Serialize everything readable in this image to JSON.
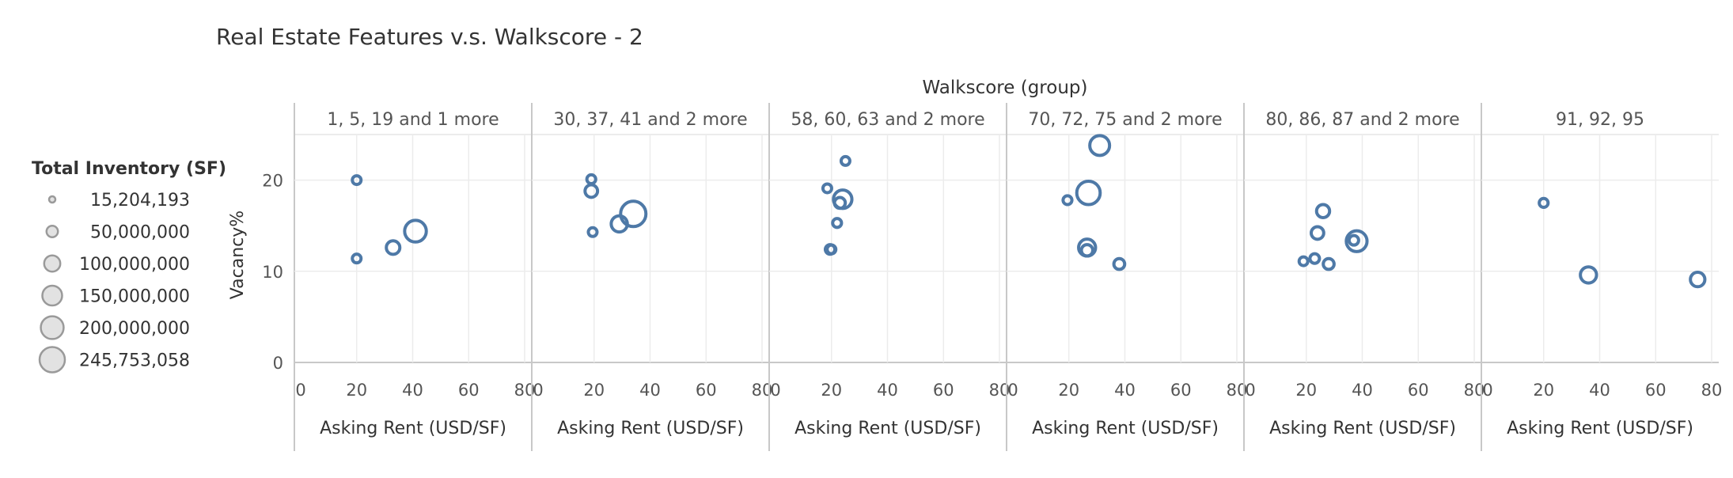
{
  "chart_data": {
    "type": "scatter",
    "title": "Real Estate Features v.s. Walkscore - 2",
    "column_header": "Walkscore (group)",
    "xlabel": "Asking Rent (USD/SF)",
    "ylabel": "Vacancy%",
    "xlim": [
      0,
      80
    ],
    "ylim": [
      0,
      25
    ],
    "x_ticks": [
      "0",
      "20",
      "40",
      "60",
      "80"
    ],
    "y_ticks": [
      "0",
      "10",
      "20"
    ],
    "grid": true,
    "legend": {
      "title": "Total Inventory (SF)",
      "position": "left",
      "items": [
        {
          "label": "15,204,193",
          "value": 15204193
        },
        {
          "label": "50,000,000",
          "value": 50000000
        },
        {
          "label": "100,000,000",
          "value": 100000000
        },
        {
          "label": "150,000,000",
          "value": 150000000
        },
        {
          "label": "200,000,000",
          "value": 200000000
        },
        {
          "label": "245,753,058",
          "value": 245753058
        }
      ]
    },
    "color": "#4e79a7",
    "panels": [
      {
        "label": "1, 5, 19 and 1 more",
        "points": [
          {
            "x": 20,
            "y": 20,
            "size": 28000000
          },
          {
            "x": 20,
            "y": 11.4,
            "size": 22000000
          },
          {
            "x": 33,
            "y": 12.6,
            "size": 70000000
          },
          {
            "x": 41,
            "y": 14.4,
            "size": 180000000
          }
        ]
      },
      {
        "label": "30, 37, 41 and 2 more",
        "points": [
          {
            "x": 19,
            "y": 20.1,
            "size": 30000000
          },
          {
            "x": 19,
            "y": 18.8,
            "size": 60000000
          },
          {
            "x": 19.5,
            "y": 14.3,
            "size": 25000000
          },
          {
            "x": 29,
            "y": 15.2,
            "size": 100000000
          },
          {
            "x": 34,
            "y": 16.3,
            "size": 245753058
          }
        ]
      },
      {
        "label": "58, 60, 63 and 2 more",
        "points": [
          {
            "x": 25,
            "y": 22.1,
            "size": 16000000
          },
          {
            "x": 18.5,
            "y": 19.1,
            "size": 25000000
          },
          {
            "x": 24,
            "y": 17.9,
            "size": 130000000
          },
          {
            "x": 23,
            "y": 17.5,
            "size": 45000000
          },
          {
            "x": 22,
            "y": 15.3,
            "size": 30000000
          },
          {
            "x": 19.5,
            "y": 12.4,
            "size": 35000000
          },
          {
            "x": 20,
            "y": 12.4,
            "size": 22000000
          }
        ]
      },
      {
        "label": "70, 72, 75 and 2 more",
        "points": [
          {
            "x": 31,
            "y": 23.8,
            "size": 150000000
          },
          {
            "x": 27,
            "y": 18.6,
            "size": 210000000
          },
          {
            "x": 19.5,
            "y": 17.8,
            "size": 30000000
          },
          {
            "x": 26.5,
            "y": 12.6,
            "size": 110000000
          },
          {
            "x": 26.5,
            "y": 12.3,
            "size": 50000000
          },
          {
            "x": 38,
            "y": 10.8,
            "size": 45000000
          }
        ]
      },
      {
        "label": "80, 86, 87 and 2 more",
        "points": [
          {
            "x": 26,
            "y": 16.6,
            "size": 65000000
          },
          {
            "x": 24,
            "y": 14.2,
            "size": 60000000
          },
          {
            "x": 38,
            "y": 13.3,
            "size": 165000000
          },
          {
            "x": 37,
            "y": 13.4,
            "size": 35000000
          },
          {
            "x": 23,
            "y": 11.4,
            "size": 35000000
          },
          {
            "x": 19,
            "y": 11.1,
            "size": 20000000
          },
          {
            "x": 28,
            "y": 10.8,
            "size": 45000000
          }
        ]
      },
      {
        "label": "91, 92, 95",
        "points": [
          {
            "x": 20,
            "y": 17.5,
            "size": 30000000
          },
          {
            "x": 36,
            "y": 9.6,
            "size": 100000000
          },
          {
            "x": 75,
            "y": 9.1,
            "size": 80000000
          }
        ]
      }
    ]
  }
}
